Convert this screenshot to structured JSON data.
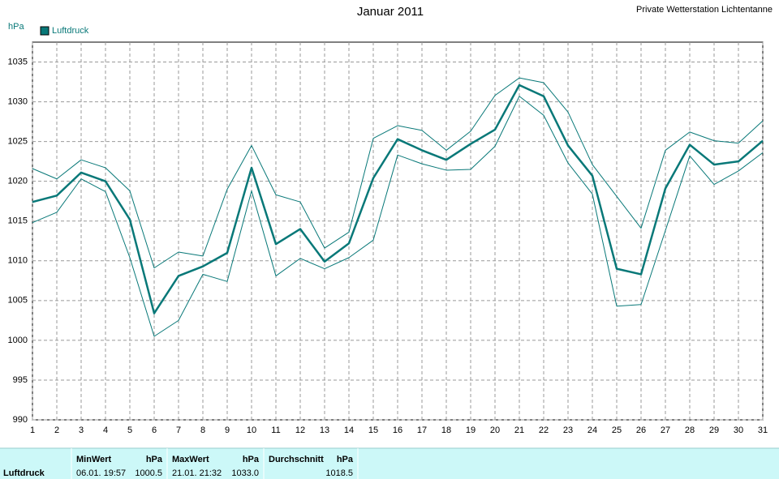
{
  "chart_data": {
    "type": "line",
    "title": "Januar 2011",
    "station": "Private Wetterstation Lichtentanne",
    "y_label": "hPa",
    "x": [
      1,
      2,
      3,
      4,
      5,
      6,
      7,
      8,
      9,
      10,
      11,
      12,
      13,
      14,
      15,
      16,
      17,
      18,
      19,
      20,
      21,
      22,
      23,
      24,
      25,
      26,
      27,
      28,
      29,
      30,
      31
    ],
    "xlim": [
      1,
      31
    ],
    "xticks": [
      1,
      2,
      3,
      4,
      5,
      6,
      7,
      8,
      9,
      10,
      11,
      12,
      13,
      14,
      15,
      16,
      17,
      18,
      19,
      20,
      21,
      22,
      23,
      24,
      25,
      26,
      27,
      28,
      29,
      30,
      31
    ],
    "ylim": [
      990,
      1037.5
    ],
    "yticks": [
      990,
      995,
      1000,
      1005,
      1010,
      1015,
      1020,
      1025,
      1030,
      1035
    ],
    "grid": true,
    "legend": "top-left",
    "series": [
      {
        "name": "Luftdruck",
        "color": "#087878",
        "width": 2.5,
        "values": [
          1017.4,
          1018.2,
          1021.1,
          1020.0,
          1015.2,
          1003.4,
          1008.1,
          1009.3,
          1011.0,
          1021.7,
          1012.1,
          1014.0,
          1009.9,
          1012.2,
          1020.4,
          1025.3,
          1023.9,
          1022.7,
          1024.7,
          1026.5,
          1032.1,
          1030.7,
          1024.5,
          1020.7,
          1009.0,
          1008.3,
          1019.1,
          1024.6,
          1022.1,
          1022.5,
          1025.1
        ]
      },
      {
        "color": "#087878",
        "width": 1,
        "values": [
          1021.6,
          1020.3,
          1022.7,
          1021.7,
          1018.8,
          1009.1,
          1011.1,
          1010.6,
          1019.0,
          1024.5,
          1018.3,
          1017.4,
          1011.6,
          1013.6,
          1025.4,
          1027.0,
          1026.4,
          1023.9,
          1026.3,
          1030.8,
          1033.0,
          1032.4,
          1028.7,
          1022.1,
          1018.1,
          1014.1,
          1023.9,
          1026.2,
          1025.1,
          1024.8,
          1027.6
        ]
      },
      {
        "color": "#087878",
        "width": 1,
        "values": [
          1014.8,
          1016.1,
          1020.3,
          1018.7,
          1010.4,
          1000.5,
          1002.5,
          1008.3,
          1007.4,
          1018.8,
          1008.1,
          1010.3,
          1009.0,
          1010.4,
          1012.6,
          1023.3,
          1022.2,
          1021.4,
          1021.5,
          1024.4,
          1030.7,
          1028.3,
          1022.3,
          1018.4,
          1004.3,
          1004.5,
          1013.8,
          1023.2,
          1019.6,
          1021.3,
          1023.6
        ]
      }
    ]
  },
  "stats_table": {
    "row_label": "Luftdruck",
    "columns": [
      {
        "header": "MinWert",
        "unit": "hPa",
        "time": "06.01.  19:57",
        "value": "1000.5"
      },
      {
        "header": "MaxWert",
        "unit": "hPa",
        "time": "21.01.  21:32",
        "value": "1033.0"
      },
      {
        "header": "Durchschnitt",
        "unit": "hPa",
        "value": "1018.5"
      }
    ]
  }
}
